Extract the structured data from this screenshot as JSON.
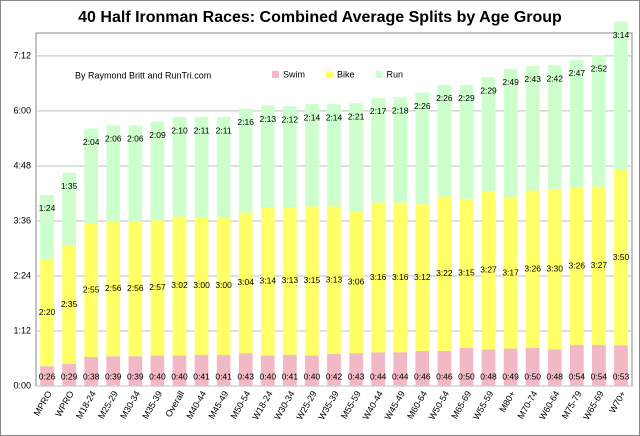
{
  "chart_data": {
    "type": "stacked_bar",
    "title": "40 Half Ironman Races: Combined Average Splits by Age Group",
    "annotation": "By Raymond Britt and RunTri.com",
    "categories": [
      "MPRO",
      "WPRO",
      "M18-24",
      "M25-29",
      "M30-34",
      "M35-39",
      "Overall",
      "M40-44",
      "M45-49",
      "M50-54",
      "W18-24",
      "W30-34",
      "W25-29",
      "W35-39",
      "M55-59",
      "W40-44",
      "W45-49",
      "M60-64",
      "W50-54",
      "M65-69",
      "W55-59",
      "M80+",
      "M70-74",
      "W60-64",
      "M75-79",
      "W65-69",
      "W70+"
    ],
    "series": [
      {
        "name": "Swim",
        "color": "#f2b8c6",
        "values": [
          26,
          29,
          38,
          39,
          39,
          40,
          40,
          41,
          41,
          43,
          40,
          41,
          40,
          42,
          43,
          44,
          44,
          46,
          46,
          50,
          48,
          49,
          50,
          48,
          54,
          54,
          53
        ],
        "value_labels": [
          "0:26",
          "0:29",
          "0:38",
          "0:39",
          "0:39",
          "0:40",
          "0:40",
          "0:41",
          "0:41",
          "0:43",
          "0:40",
          "0:41",
          "0:40",
          "0:42",
          "0:43",
          "0:44",
          "0:44",
          "0:46",
          "0:46",
          "0:50",
          "0:48",
          "0:49",
          "0:50",
          "0:48",
          "0:54",
          "0:54",
          "0:53"
        ]
      },
      {
        "name": "Bike",
        "color": "#ffff66",
        "values": [
          140,
          155,
          175,
          176,
          176,
          177,
          182,
          180,
          180,
          184,
          194,
          193,
          195,
          193,
          186,
          196,
          196,
          192,
          202,
          195,
          207,
          197,
          206,
          210,
          206,
          207,
          230
        ],
        "value_labels": [
          "2:20",
          "2:35",
          "2:55",
          "2:56",
          "2:56",
          "2:57",
          "3:02",
          "3:00",
          "3:00",
          "3:04",
          "3:14",
          "3:13",
          "3:15",
          "3:13",
          "3:06",
          "3:16",
          "3:16",
          "3:12",
          "3:22",
          "3:15",
          "3:27",
          "3:17",
          "3:26",
          "3:30",
          "3:26",
          "3:27",
          "3:50"
        ]
      },
      {
        "name": "Run",
        "color": "#ccffcc",
        "values": [
          84,
          95,
          124,
          126,
          126,
          129,
          130,
          131,
          131,
          136,
          133,
          132,
          134,
          134,
          141,
          137,
          138,
          146,
          146,
          149,
          149,
          169,
          163,
          162,
          167,
          172,
          194
        ],
        "value_labels": [
          "1:24",
          "1:35",
          "2:04",
          "2:06",
          "2:06",
          "2:09",
          "2:10",
          "2:11",
          "2:11",
          "2:16",
          "2:13",
          "2:12",
          "2:14",
          "2:14",
          "2:21",
          "2:17",
          "2:18",
          "2:26",
          "2:26",
          "2:29",
          "2:29",
          "2:49",
          "2:43",
          "2:42",
          "2:47",
          "2:52",
          "3:14"
        ]
      }
    ],
    "ylim": [
      0,
      462
    ],
    "yticks": [
      {
        "value": 0,
        "label": "0:00"
      },
      {
        "value": 72,
        "label": "1:12"
      },
      {
        "value": 144,
        "label": "2:24"
      },
      {
        "value": 216,
        "label": "3:36"
      },
      {
        "value": 288,
        "label": "4:48"
      },
      {
        "value": 360,
        "label": "6:00"
      },
      {
        "value": 432,
        "label": "7:12"
      }
    ],
    "grid": true
  }
}
